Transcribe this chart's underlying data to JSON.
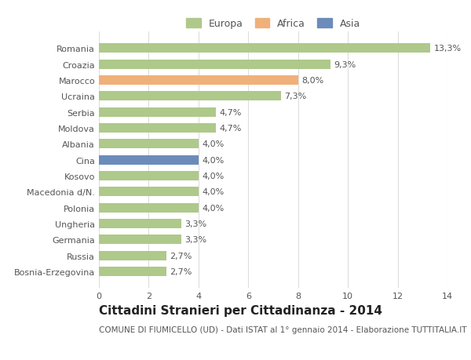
{
  "categories": [
    "Bosnia-Erzegovina",
    "Russia",
    "Germania",
    "Ungheria",
    "Polonia",
    "Macedonia d/N.",
    "Kosovo",
    "Cina",
    "Albania",
    "Moldova",
    "Serbia",
    "Ucraina",
    "Marocco",
    "Croazia",
    "Romania"
  ],
  "values": [
    2.7,
    2.7,
    3.3,
    3.3,
    4.0,
    4.0,
    4.0,
    4.0,
    4.0,
    4.7,
    4.7,
    7.3,
    8.0,
    9.3,
    13.3
  ],
  "bar_colors": [
    "#aec98a",
    "#aec98a",
    "#aec98a",
    "#aec98a",
    "#aec98a",
    "#aec98a",
    "#aec98a",
    "#6b8cba",
    "#aec98a",
    "#aec98a",
    "#aec98a",
    "#aec98a",
    "#f0b07a",
    "#aec98a",
    "#aec98a"
  ],
  "labels": [
    "2,7%",
    "2,7%",
    "3,3%",
    "3,3%",
    "4,0%",
    "4,0%",
    "4,0%",
    "4,0%",
    "4,0%",
    "4,7%",
    "4,7%",
    "7,3%",
    "8,0%",
    "9,3%",
    "13,3%"
  ],
  "legend_labels": [
    "Europa",
    "Africa",
    "Asia"
  ],
  "legend_colors": [
    "#aec98a",
    "#f0b07a",
    "#6b8cba"
  ],
  "title": "Cittadini Stranieri per Cittadinanza - 2014",
  "subtitle": "COMUNE DI FIUMICELLO (UD) - Dati ISTAT al 1° gennaio 2014 - Elaborazione TUTTITALIA.IT",
  "xlim": [
    0,
    14
  ],
  "xticks": [
    0,
    2,
    4,
    6,
    8,
    10,
    12,
    14
  ],
  "background_color": "#ffffff",
  "bar_height": 0.6,
  "grid_color": "#dddddd",
  "label_fontsize": 8.0,
  "tick_fontsize": 8.0,
  "title_fontsize": 11,
  "subtitle_fontsize": 7.5
}
